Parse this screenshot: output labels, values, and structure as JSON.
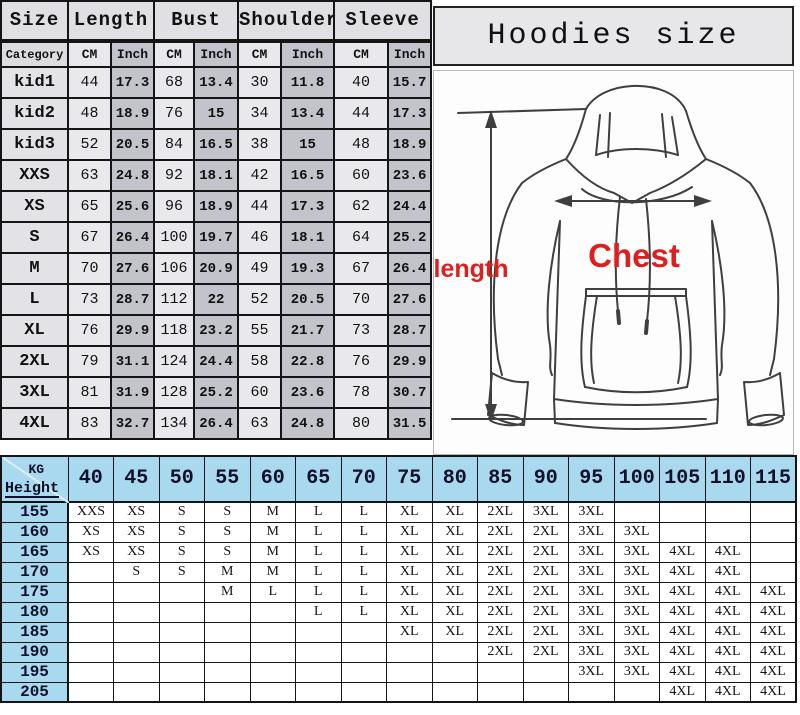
{
  "title": "Hoodies size",
  "diagram": {
    "length_label": "length",
    "chest_label": "Chest",
    "label_color": "#dd1f1f"
  },
  "colors": {
    "header_gray": "#e0e0e4",
    "cm_column_gray": "#e9e9ed",
    "inch_column_gray": "#c3c3cc",
    "title_box_gray": "#e7e7e9",
    "fit_table_blue": "#a9d9ee",
    "border_black": "#151515",
    "label_red": "#dd1f1f"
  },
  "chart_data": [
    {
      "type": "table",
      "name": "size-measurements",
      "col_groups": [
        "Size",
        "Length",
        "Bust",
        "Shoulder",
        "Sleeve"
      ],
      "sub_headers": [
        "Category",
        "CM",
        "Inch",
        "CM",
        "Inch",
        "CM",
        "Inch",
        "CM",
        "Inch"
      ],
      "rows": [
        {
          "size": "kid1",
          "values": [
            "44",
            "17.3",
            "68",
            "13.4",
            "30",
            "11.8",
            "40",
            "15.7"
          ]
        },
        {
          "size": "kid2",
          "values": [
            "48",
            "18.9",
            "76",
            "15",
            "34",
            "13.4",
            "44",
            "17.3"
          ]
        },
        {
          "size": "kid3",
          "values": [
            "52",
            "20.5",
            "84",
            "16.5",
            "38",
            "15",
            "48",
            "18.9"
          ]
        },
        {
          "size": "XXS",
          "values": [
            "63",
            "24.8",
            "92",
            "18.1",
            "42",
            "16.5",
            "60",
            "23.6"
          ]
        },
        {
          "size": "XS",
          "values": [
            "65",
            "25.6",
            "96",
            "18.9",
            "44",
            "17.3",
            "62",
            "24.4"
          ]
        },
        {
          "size": "S",
          "values": [
            "67",
            "26.4",
            "100",
            "19.7",
            "46",
            "18.1",
            "64",
            "25.2"
          ]
        },
        {
          "size": "M",
          "values": [
            "70",
            "27.6",
            "106",
            "20.9",
            "49",
            "19.3",
            "67",
            "26.4"
          ]
        },
        {
          "size": "L",
          "values": [
            "73",
            "28.7",
            "112",
            "22",
            "52",
            "20.5",
            "70",
            "27.6"
          ]
        },
        {
          "size": "XL",
          "values": [
            "76",
            "29.9",
            "118",
            "23.2",
            "55",
            "21.7",
            "73",
            "28.7"
          ]
        },
        {
          "size": "2XL",
          "values": [
            "79",
            "31.1",
            "124",
            "24.4",
            "58",
            "22.8",
            "76",
            "29.9"
          ]
        },
        {
          "size": "3XL",
          "values": [
            "81",
            "31.9",
            "128",
            "25.2",
            "60",
            "23.6",
            "78",
            "30.7"
          ]
        },
        {
          "size": "4XL",
          "values": [
            "83",
            "32.7",
            "134",
            "26.4",
            "63",
            "24.8",
            "80",
            "31.5"
          ]
        }
      ]
    },
    {
      "type": "table",
      "name": "height-weight-size-matrix",
      "corner": {
        "top": "KG",
        "bottom": "Height"
      },
      "weights": [
        "40",
        "45",
        "50",
        "55",
        "60",
        "65",
        "70",
        "75",
        "80",
        "85",
        "90",
        "95",
        "100",
        "105",
        "110",
        "115"
      ],
      "rows": [
        {
          "height": "155",
          "cells": [
            "XXS",
            "XS",
            "S",
            "S",
            "M",
            "L",
            "L",
            "XL",
            "XL",
            "2XL",
            "3XL",
            "3XL",
            "",
            "",
            "",
            ""
          ]
        },
        {
          "height": "160",
          "cells": [
            "XS",
            "XS",
            "S",
            "S",
            "M",
            "L",
            "L",
            "XL",
            "XL",
            "2XL",
            "2XL",
            "3XL",
            "3XL",
            "",
            "",
            ""
          ]
        },
        {
          "height": "165",
          "cells": [
            "XS",
            "XS",
            "S",
            "S",
            "M",
            "L",
            "L",
            "XL",
            "XL",
            "2XL",
            "2XL",
            "3XL",
            "3XL",
            "4XL",
            "4XL",
            ""
          ]
        },
        {
          "height": "170",
          "cells": [
            "",
            "S",
            "S",
            "M",
            "M",
            "L",
            "L",
            "XL",
            "XL",
            "2XL",
            "2XL",
            "3XL",
            "3XL",
            "4XL",
            "4XL",
            ""
          ]
        },
        {
          "height": "175",
          "cells": [
            "",
            "",
            "",
            "M",
            "L",
            "L",
            "L",
            "XL",
            "XL",
            "2XL",
            "2XL",
            "3XL",
            "3XL",
            "4XL",
            "4XL",
            "4XL"
          ]
        },
        {
          "height": "180",
          "cells": [
            "",
            "",
            "",
            "",
            "",
            "L",
            "L",
            "XL",
            "XL",
            "2XL",
            "2XL",
            "3XL",
            "3XL",
            "4XL",
            "4XL",
            "4XL"
          ]
        },
        {
          "height": "185",
          "cells": [
            "",
            "",
            "",
            "",
            "",
            "",
            "",
            "XL",
            "XL",
            "2XL",
            "2XL",
            "3XL",
            "3XL",
            "4XL",
            "4XL",
            "4XL"
          ]
        },
        {
          "height": "190",
          "cells": [
            "",
            "",
            "",
            "",
            "",
            "",
            "",
            "",
            "",
            "2XL",
            "2XL",
            "3XL",
            "3XL",
            "4XL",
            "4XL",
            "4XL"
          ]
        },
        {
          "height": "195",
          "cells": [
            "",
            "",
            "",
            "",
            "",
            "",
            "",
            "",
            "",
            "",
            "",
            "3XL",
            "3XL",
            "4XL",
            "4XL",
            "4XL"
          ]
        },
        {
          "height": "205",
          "cells": [
            "",
            "",
            "",
            "",
            "",
            "",
            "",
            "",
            "",
            "",
            "",
            "",
            "",
            "4XL",
            "4XL",
            "4XL"
          ]
        }
      ]
    }
  ]
}
